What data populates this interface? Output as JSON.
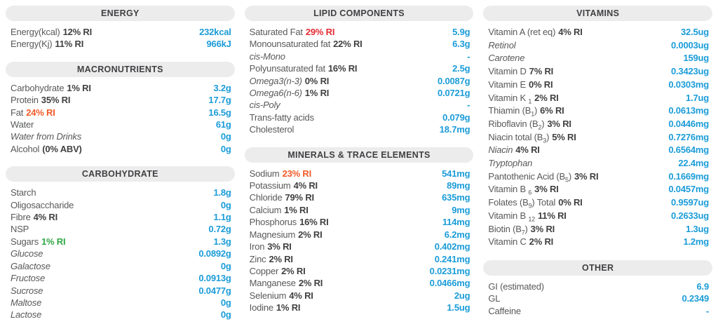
{
  "colors": {
    "value_blue": "#1b9cd8",
    "warning_orange": "#f15a29",
    "alert_red": "#e52b32",
    "ok_green": "#2ea843",
    "header_bg": "#ececed",
    "header_text": "#414042",
    "label_gray": "#58595b"
  },
  "columns": [
    {
      "sections": [
        {
          "title": "ENERGY",
          "rows": [
            {
              "label": "Energy(kcal)",
              "ri": "12% RI",
              "value": "232kcal"
            },
            {
              "label": "Energy(Kj)",
              "ri": "11% RI",
              "value": "966kJ"
            }
          ]
        },
        {
          "title": "MACRONUTRIENTS",
          "rows": [
            {
              "label": "Carbohydrate",
              "ri": "1% RI",
              "value": "3.2g"
            },
            {
              "label": "Protein",
              "ri": "35% RI",
              "value": "17.7g"
            },
            {
              "label": "Fat",
              "ri": "24% RI",
              "ri_color": "orange",
              "value": "16.5g"
            },
            {
              "label": "Water",
              "value": "61g"
            },
            {
              "label": "Water from Drinks",
              "italic": true,
              "value": "0g"
            },
            {
              "label": "Alcohol",
              "ri": "(0% ABV)",
              "value": "0g"
            }
          ]
        },
        {
          "title": "CARBOHYDRATE",
          "rows": [
            {
              "label": "Starch",
              "value": "1.8g"
            },
            {
              "label": "Oligosaccharide",
              "value": "0g"
            },
            {
              "label": "Fibre",
              "ri": "4% RI",
              "value": "1.1g"
            },
            {
              "label": "NSP",
              "value": "0.72g"
            },
            {
              "label": "Sugars",
              "ri": "1% RI",
              "ri_color": "green",
              "value": "1.3g"
            },
            {
              "label": "Glucose",
              "italic": true,
              "value": "0.0892g"
            },
            {
              "label": "Galactose",
              "italic": true,
              "value": "0g"
            },
            {
              "label": "Fructose",
              "italic": true,
              "value": "0.0913g"
            },
            {
              "label": "Sucrose",
              "italic": true,
              "value": "0.0477g"
            },
            {
              "label": "Maltose",
              "italic": true,
              "value": "0g"
            },
            {
              "label": "Lactose",
              "italic": true,
              "value": "0g"
            }
          ]
        }
      ]
    },
    {
      "sections": [
        {
          "title": "LIPID COMPONENTS",
          "rows": [
            {
              "label": "Saturated Fat",
              "ri": "29% RI",
              "ri_color": "red",
              "value": "5.9g"
            },
            {
              "label": "Monounsaturated fat",
              "ri": "22% RI",
              "value": "6.3g"
            },
            {
              "label": "cis-Mono",
              "italic": true,
              "value": "-"
            },
            {
              "label": "Polyunsaturated fat",
              "ri": "16% RI",
              "value": "2.5g"
            },
            {
              "label": "Omega3(n-3)",
              "italic": true,
              "ri": "0% RI",
              "value": "0.0087g"
            },
            {
              "label": "Omega6(n-6)",
              "italic": true,
              "ri": "1% RI",
              "value": "0.0721g"
            },
            {
              "label": "cis-Poly",
              "italic": true,
              "value": "-"
            },
            {
              "label": "Trans-fatty acids",
              "value": "0.079g"
            },
            {
              "label": "Cholesterol",
              "value": "18.7mg"
            }
          ]
        },
        {
          "title": "MINERALS & TRACE ELEMENTS",
          "rows": [
            {
              "label": "Sodium",
              "ri": "23% RI",
              "ri_color": "orange",
              "value": "541mg"
            },
            {
              "label": "Potassium",
              "ri": "4% RI",
              "value": "89mg"
            },
            {
              "label": "Chloride",
              "ri": "79% RI",
              "value": "635mg"
            },
            {
              "label": "Calcium",
              "ri": "1% RI",
              "value": "9mg"
            },
            {
              "label": "Phosphorus",
              "ri": "16% RI",
              "value": "114mg"
            },
            {
              "label": "Magnesium",
              "ri": "2% RI",
              "value": "6.2mg"
            },
            {
              "label": "Iron",
              "ri": "3% RI",
              "value": "0.402mg"
            },
            {
              "label": "Zinc",
              "ri": "2% RI",
              "value": "0.241mg"
            },
            {
              "label": "Copper",
              "ri": "2% RI",
              "value": "0.0231mg"
            },
            {
              "label": "Manganese",
              "ri": "2% RI",
              "value": "0.0466mg"
            },
            {
              "label": "Selenium",
              "ri": "4% RI",
              "value": "2ug"
            },
            {
              "label": "Iodine",
              "ri": "1% RI",
              "value": "1.5ug"
            }
          ]
        }
      ]
    },
    {
      "sections": [
        {
          "title": "VITAMINS",
          "rows": [
            {
              "label": "Vitamin A (ret eq)",
              "ri": "4% RI",
              "value": "32.5ug"
            },
            {
              "label": "Retinol",
              "italic": true,
              "value": "0.0003ug"
            },
            {
              "label": "Carotene",
              "italic": true,
              "value": "159ug"
            },
            {
              "label": "Vitamin D",
              "ri": "7% RI",
              "value": "0.3423ug"
            },
            {
              "label": "Vitamin E",
              "ri": "0% RI",
              "value": "0.0303mg"
            },
            {
              "parts": [
                {
                  "text": "Vitamin K "
                },
                {
                  "text": "1",
                  "sub": true
                }
              ],
              "ri": "2% RI",
              "value": "1.7ug"
            },
            {
              "parts": [
                {
                  "text": "Thiamin (B"
                },
                {
                  "text": "1",
                  "sub": true
                },
                {
                  "text": ")"
                }
              ],
              "ri": "6% RI",
              "value": "0.0613mg"
            },
            {
              "parts": [
                {
                  "text": "Riboflavin (B"
                },
                {
                  "text": "2",
                  "sub": true
                },
                {
                  "text": ")"
                }
              ],
              "ri": "3% RI",
              "value": "0.0446mg"
            },
            {
              "parts": [
                {
                  "text": "Niacin total (B"
                },
                {
                  "text": "3",
                  "sub": true
                },
                {
                  "text": ")"
                }
              ],
              "ri": "5% RI",
              "value": "0.7276mg"
            },
            {
              "label": "Niacin",
              "italic": true,
              "ri": "4% RI",
              "value": "0.6564mg"
            },
            {
              "label": "Tryptophan",
              "italic": true,
              "value": "22.4mg"
            },
            {
              "parts": [
                {
                  "text": "Pantothenic Acid (B"
                },
                {
                  "text": "5",
                  "sub": true
                },
                {
                  "text": ")"
                }
              ],
              "ri": "3% RI",
              "value": "0.1669mg"
            },
            {
              "parts": [
                {
                  "text": "Vitamin B "
                },
                {
                  "text": "6",
                  "sub": true
                }
              ],
              "ri": "3% RI",
              "value": "0.0457mg"
            },
            {
              "parts": [
                {
                  "text": "Folates (B"
                },
                {
                  "text": "9",
                  "sub": true
                },
                {
                  "text": ") Total"
                }
              ],
              "ri": "0% RI",
              "value": "0.9597ug"
            },
            {
              "parts": [
                {
                  "text": "Vitamin B "
                },
                {
                  "text": "12",
                  "sub": true
                }
              ],
              "ri": "11% RI",
              "value": "0.2633ug"
            },
            {
              "parts": [
                {
                  "text": "Biotin (B"
                },
                {
                  "text": "7",
                  "sub": true
                },
                {
                  "text": ")"
                }
              ],
              "ri": "3% RI",
              "value": "1.3ug"
            },
            {
              "label": "Vitamin C",
              "ri": "2% RI",
              "value": "1.2mg"
            }
          ]
        },
        {
          "title": "OTHER",
          "rows": [
            {
              "label": "GI (estimated)",
              "value": "6.9"
            },
            {
              "label": "GL",
              "value": "0.2349"
            },
            {
              "label": "Caffeine",
              "value": "-"
            }
          ]
        }
      ]
    }
  ]
}
